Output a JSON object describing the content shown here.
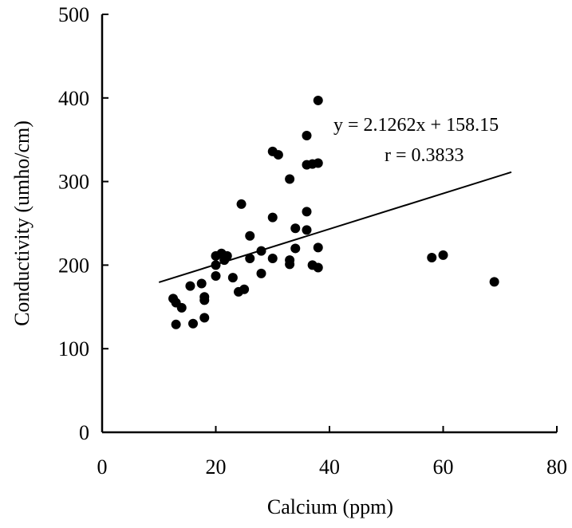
{
  "chart_data": {
    "type": "scatter",
    "title": "",
    "xlabel": "Calcium (ppm)",
    "ylabel": "Conductivity (umho/cm)",
    "xlim": [
      0,
      80
    ],
    "ylim": [
      0,
      500
    ],
    "x_ticks": [
      0,
      20,
      40,
      60,
      80
    ],
    "y_ticks": [
      0,
      100,
      200,
      300,
      400,
      500
    ],
    "grid": false,
    "legend": "none",
    "series": [
      {
        "points": [
          [
            12.5,
            160
          ],
          [
            13,
            155
          ],
          [
            13,
            129
          ],
          [
            14,
            149
          ],
          [
            15.5,
            175
          ],
          [
            16,
            130
          ],
          [
            17.5,
            178
          ],
          [
            18,
            162
          ],
          [
            18,
            158
          ],
          [
            18,
            137
          ],
          [
            20,
            211
          ],
          [
            20,
            200
          ],
          [
            20,
            187
          ],
          [
            21,
            214
          ],
          [
            21.5,
            206
          ],
          [
            22,
            211
          ],
          [
            23,
            185
          ],
          [
            24,
            168
          ],
          [
            24.5,
            273
          ],
          [
            25,
            171
          ],
          [
            26,
            235
          ],
          [
            26,
            208
          ],
          [
            28,
            217
          ],
          [
            28,
            190
          ],
          [
            30,
            336
          ],
          [
            30,
            257
          ],
          [
            30,
            208
          ],
          [
            31,
            332
          ],
          [
            33,
            303
          ],
          [
            33,
            206
          ],
          [
            33,
            201
          ],
          [
            34,
            244
          ],
          [
            34,
            220
          ],
          [
            36,
            355
          ],
          [
            36,
            320
          ],
          [
            36,
            264
          ],
          [
            36,
            242
          ],
          [
            37,
            321
          ],
          [
            37,
            200
          ],
          [
            38,
            397
          ],
          [
            38,
            322
          ],
          [
            38,
            221
          ],
          [
            38,
            197
          ],
          [
            58,
            209
          ],
          [
            60,
            212
          ],
          [
            69,
            180
          ]
        ],
        "color": "#000000"
      }
    ],
    "trendline": {
      "slope": 2.1262,
      "intercept": 158.15,
      "x_range": [
        10,
        72
      ],
      "equation_label": "y = 2.1262x + 158.15",
      "r_label": "r = 0.3833"
    }
  }
}
